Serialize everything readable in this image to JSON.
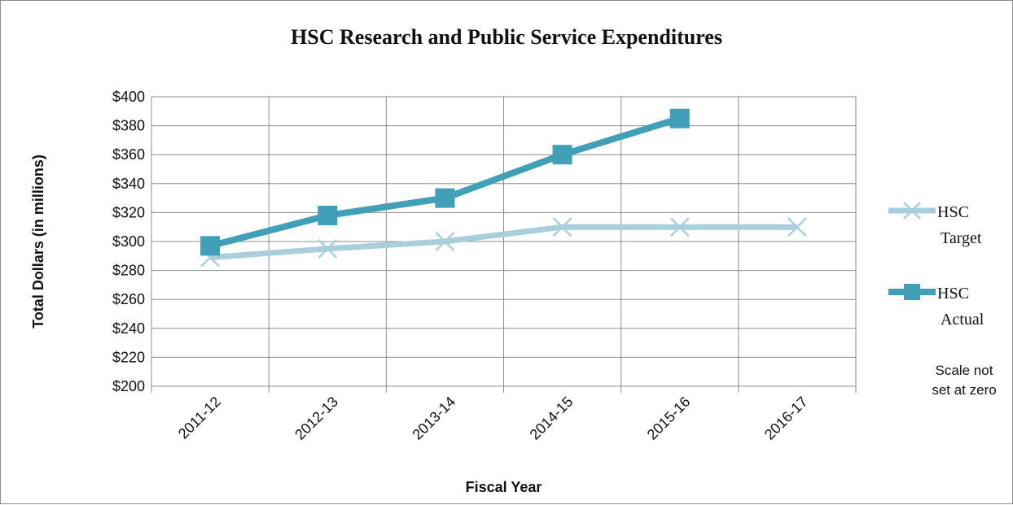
{
  "chart_data": {
    "type": "line",
    "title": "HSC Research and Public Service Expenditures",
    "xlabel": "Fiscal Year",
    "ylabel": "Total Dollars (in millions)",
    "categories": [
      "2011-12",
      "2012-13",
      "2013-14",
      "2014-15",
      "2015-16",
      "2016-17"
    ],
    "ylim": [
      200,
      400
    ],
    "ytick_step": 20,
    "ytick_prefix": "$",
    "grid": true,
    "legend_position": "right",
    "note": [
      "Scale not",
      "set at zero"
    ],
    "series": [
      {
        "name": "HSC Target",
        "legend_lines": [
          "HSC",
          "Target"
        ],
        "marker": "x",
        "color": "#a9cfdc",
        "values": [
          289,
          295,
          300,
          310,
          310,
          310
        ]
      },
      {
        "name": "HSC Actual",
        "legend_lines": [
          "HSC",
          "Actual"
        ],
        "marker": "square",
        "color": "#3fa0b7",
        "values": [
          297,
          318,
          330,
          360,
          385,
          null
        ]
      }
    ]
  }
}
